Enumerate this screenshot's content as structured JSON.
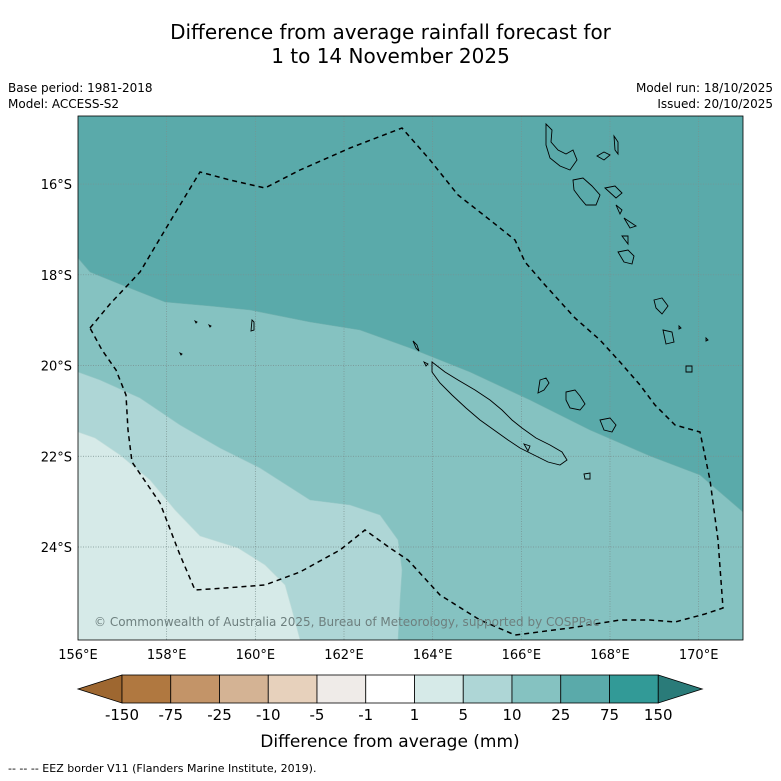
{
  "title": {
    "line1": "Difference from average rainfall forecast for",
    "line2": "1 to 14 November 2025"
  },
  "info_left": {
    "base_period": "Base period: 1981-2018",
    "model": "Model: ACCESS-S2"
  },
  "info_right": {
    "model_run": "Model run: 18/10/2025",
    "issued": "Issued: 20/10/2025"
  },
  "map": {
    "lon_range": [
      156,
      171
    ],
    "lat_range": [
      -26.05,
      -14.5
    ],
    "lat_ticks": [
      {
        "value": -16,
        "label": "16°S"
      },
      {
        "value": -18,
        "label": "18°S"
      },
      {
        "value": -20,
        "label": "20°S"
      },
      {
        "value": -22,
        "label": "22°S"
      },
      {
        "value": -24,
        "label": "24°S"
      }
    ],
    "lon_ticks": [
      {
        "value": 156,
        "label": "156°E"
      },
      {
        "value": 158,
        "label": "158°E"
      },
      {
        "value": 160,
        "label": "160°E"
      },
      {
        "value": 162,
        "label": "162°E"
      },
      {
        "value": 164,
        "label": "164°E"
      },
      {
        "value": 166,
        "label": "166°E"
      },
      {
        "value": 168,
        "label": "168°E"
      },
      {
        "value": 170,
        "label": "170°E"
      }
    ],
    "copyright": "© Commonwealth of Australia 2025, Bureau of Meteorology, supported by COSPPac"
  },
  "colorbar": {
    "label": "Difference from average (mm)",
    "tick_labels": [
      "-150",
      "-75",
      "-25",
      "-10",
      "-5",
      "-1",
      "1",
      "5",
      "10",
      "25",
      "75",
      "150"
    ],
    "colors": [
      "#9e6730",
      "#b07840",
      "#c39468",
      "#d4b394",
      "#e7d1bc",
      "#efebe8",
      "#ffffff",
      "#d6eae8",
      "#aed6d6",
      "#85c2c1",
      "#5aaaaa",
      "#329a97",
      "#2a7b79"
    ]
  },
  "legend_footer": "--  --  -- EEZ border V11 (Flanders Marine Institute, 2019)."
}
